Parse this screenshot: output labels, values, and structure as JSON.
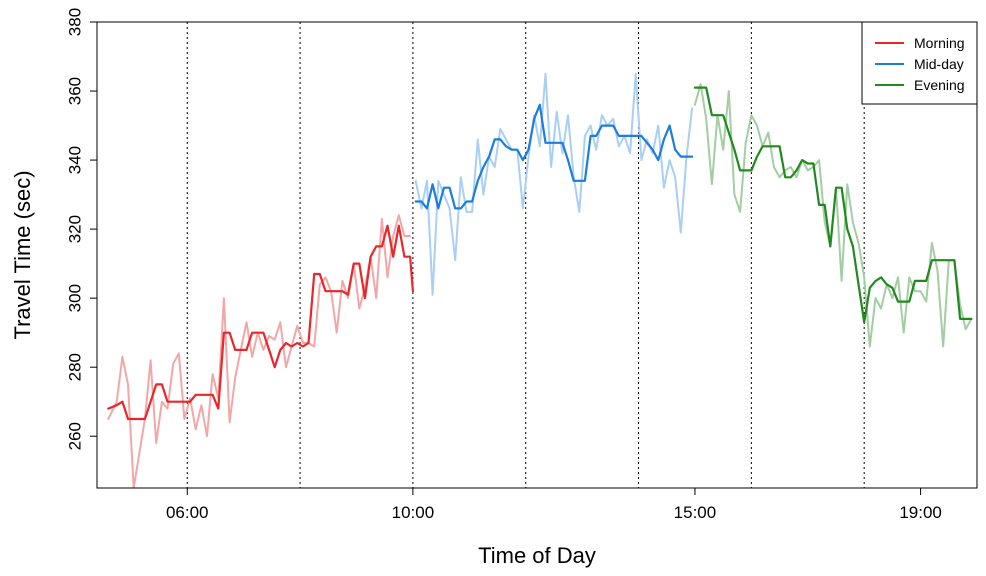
{
  "chart_data": {
    "type": "line",
    "title": "",
    "xlabel": "Time of Day",
    "ylabel": "Travel Time (sec)",
    "x_range": [
      4.4,
      20.0
    ],
    "ylim": [
      245,
      380
    ],
    "x_ticks": [
      {
        "value": 6.0,
        "label": "06:00"
      },
      {
        "value": 10.0,
        "label": "10:00"
      },
      {
        "value": 15.0,
        "label": "15:00"
      },
      {
        "value": 19.0,
        "label": "19:00"
      }
    ],
    "y_ticks": [
      260,
      280,
      300,
      320,
      340,
      360,
      380
    ],
    "vertical_dotted_lines": [
      6.0,
      8.0,
      10.0,
      12.0,
      14.0,
      16.0,
      18.0,
      20.0
    ],
    "grid": false,
    "legend": {
      "position": "top-right",
      "entries": [
        {
          "label": "Morning",
          "color": "#e8272b"
        },
        {
          "label": "Mid-day",
          "color": "#1e7ddb"
        },
        {
          "label": "Evening",
          "color": "#21891f"
        }
      ]
    },
    "series": [
      {
        "name": "Morning",
        "kind": "observed",
        "color": "#f4a6a6",
        "x": [
          4.6,
          4.75,
          4.85,
          4.95,
          5.05,
          5.15,
          5.25,
          5.35,
          5.45,
          5.55,
          5.65,
          5.75,
          5.85,
          5.95,
          6.05,
          6.15,
          6.25,
          6.35,
          6.45,
          6.55,
          6.65,
          6.75,
          6.85,
          6.95,
          7.05,
          7.15,
          7.25,
          7.35,
          7.45,
          7.55,
          7.65,
          7.75,
          7.85,
          7.95,
          8.05,
          8.15,
          8.25,
          8.35,
          8.45,
          8.55,
          8.65,
          8.75,
          8.85,
          8.95,
          9.05,
          9.15,
          9.25,
          9.35,
          9.45,
          9.55,
          9.65,
          9.75,
          9.85,
          9.95
        ],
        "y": [
          265,
          270,
          283,
          275,
          245,
          255,
          265,
          282,
          258,
          270,
          268,
          281,
          284,
          265,
          271,
          262,
          269,
          260,
          278,
          271,
          300,
          264,
          277,
          285,
          293,
          283,
          290,
          285,
          289,
          288,
          293,
          280,
          286,
          292,
          287,
          287,
          286,
          304,
          306,
          302,
          290,
          305,
          300,
          310,
          297,
          303,
          312,
          300,
          323,
          306,
          318,
          324,
          318,
          318
        ]
      },
      {
        "name": "Morning",
        "kind": "fitted",
        "color": "#e8272b",
        "x": [
          4.6,
          4.75,
          4.85,
          4.95,
          5.05,
          5.15,
          5.25,
          5.35,
          5.45,
          5.55,
          5.65,
          5.75,
          5.85,
          5.95,
          6.05,
          6.15,
          6.25,
          6.35,
          6.45,
          6.55,
          6.65,
          6.75,
          6.85,
          6.95,
          7.05,
          7.15,
          7.25,
          7.35,
          7.45,
          7.55,
          7.65,
          7.75,
          7.85,
          7.95,
          8.05,
          8.15,
          8.25,
          8.35,
          8.45,
          8.55,
          8.65,
          8.75,
          8.85,
          8.95,
          9.05,
          9.15,
          9.25,
          9.35,
          9.45,
          9.55,
          9.65,
          9.75,
          9.85,
          9.95,
          10.0
        ],
        "y": [
          268,
          269,
          270,
          265,
          265,
          265,
          265,
          270,
          275,
          275,
          270,
          270,
          270,
          270,
          270,
          272,
          272,
          272,
          272,
          268,
          290,
          290,
          285,
          285,
          285,
          290,
          290,
          290,
          285,
          280,
          285,
          287,
          286,
          287,
          286,
          287,
          307,
          307,
          302,
          302,
          302,
          302,
          301,
          310,
          310,
          300,
          312,
          315,
          315,
          321,
          312,
          321,
          312,
          312,
          302
        ]
      },
      {
        "name": "Mid-day",
        "kind": "observed",
        "color": "#a9cff2",
        "x": [
          10.05,
          10.15,
          10.25,
          10.35,
          10.45,
          10.55,
          10.65,
          10.75,
          10.85,
          10.95,
          11.05,
          11.15,
          11.25,
          11.35,
          11.45,
          11.55,
          11.65,
          11.75,
          11.85,
          11.95,
          12.05,
          12.15,
          12.25,
          12.35,
          12.45,
          12.55,
          12.65,
          12.75,
          12.85,
          12.95,
          13.05,
          13.15,
          13.25,
          13.35,
          13.45,
          13.55,
          13.65,
          13.75,
          13.85,
          13.95,
          14.05,
          14.15,
          14.25,
          14.35,
          14.45,
          14.55,
          14.65,
          14.75,
          14.85,
          14.95
        ],
        "y": [
          334,
          326,
          334,
          301,
          334,
          330,
          326,
          311,
          335,
          325,
          325,
          346,
          330,
          341,
          338,
          349,
          346,
          343,
          343,
          326,
          341,
          353,
          344,
          365,
          338,
          354,
          342,
          353,
          335,
          325,
          347,
          350,
          343,
          353,
          350,
          352,
          344,
          347,
          342,
          365,
          340,
          346,
          342,
          350,
          332,
          340,
          335,
          319,
          341,
          355
        ]
      },
      {
        "name": "Mid-day",
        "kind": "fitted",
        "color": "#1e7ddb",
        "x": [
          10.05,
          10.15,
          10.25,
          10.35,
          10.45,
          10.55,
          10.65,
          10.75,
          10.85,
          10.95,
          11.05,
          11.15,
          11.25,
          11.35,
          11.45,
          11.55,
          11.65,
          11.75,
          11.85,
          11.95,
          12.05,
          12.15,
          12.25,
          12.35,
          12.45,
          12.55,
          12.65,
          12.75,
          12.85,
          12.95,
          13.05,
          13.15,
          13.25,
          13.35,
          13.45,
          13.55,
          13.65,
          13.75,
          13.85,
          13.95,
          14.05,
          14.15,
          14.25,
          14.35,
          14.45,
          14.55,
          14.65,
          14.75,
          14.85,
          14.95
        ],
        "y": [
          328,
          328,
          326,
          333,
          326,
          332,
          332,
          326,
          326,
          328,
          328,
          334,
          338,
          341,
          346,
          346,
          344,
          343,
          343,
          340,
          343,
          352,
          356,
          345,
          345,
          345,
          345,
          340,
          334,
          334,
          334,
          347,
          347,
          350,
          350,
          350,
          347,
          347,
          347,
          347,
          347,
          345,
          343,
          340,
          346,
          350,
          343,
          341,
          341,
          341
        ]
      },
      {
        "name": "Evening",
        "kind": "observed",
        "color": "#a3cda2",
        "x": [
          15.0,
          15.1,
          15.2,
          15.3,
          15.4,
          15.5,
          15.6,
          15.7,
          15.8,
          15.9,
          16.0,
          16.1,
          16.2,
          16.3,
          16.4,
          16.5,
          16.6,
          16.7,
          16.8,
          16.9,
          17.0,
          17.1,
          17.2,
          17.3,
          17.4,
          17.5,
          17.6,
          17.7,
          17.8,
          17.9,
          18.0,
          18.1,
          18.2,
          18.3,
          18.4,
          18.5,
          18.6,
          18.7,
          18.8,
          18.9,
          19.0,
          19.1,
          19.2,
          19.3,
          19.4,
          19.5,
          19.6,
          19.7,
          19.8,
          19.9
        ],
        "y": [
          356,
          362,
          352,
          333,
          353,
          343,
          360,
          330,
          325,
          345,
          353,
          350,
          344,
          348,
          338,
          335,
          337,
          338,
          335,
          340,
          337,
          338,
          340,
          322,
          315,
          332,
          305,
          333,
          322,
          316,
          306,
          286,
          300,
          297,
          304,
          300,
          306,
          290,
          306,
          302,
          302,
          299,
          316,
          308,
          286,
          311,
          311,
          298,
          291,
          294
        ]
      },
      {
        "name": "Evening",
        "kind": "fitted",
        "color": "#21891f",
        "x": [
          15.0,
          15.1,
          15.2,
          15.3,
          15.4,
          15.5,
          15.6,
          15.7,
          15.8,
          15.9,
          16.0,
          16.1,
          16.2,
          16.3,
          16.4,
          16.5,
          16.6,
          16.7,
          16.8,
          16.9,
          17.0,
          17.1,
          17.2,
          17.3,
          17.4,
          17.5,
          17.6,
          17.7,
          17.8,
          17.9,
          18.0,
          18.1,
          18.2,
          18.3,
          18.4,
          18.5,
          18.6,
          18.7,
          18.8,
          18.9,
          19.0,
          19.1,
          19.2,
          19.3,
          19.4,
          19.5,
          19.6,
          19.7,
          19.8,
          19.9
        ],
        "y": [
          361,
          361,
          361,
          353,
          353,
          353,
          348,
          343,
          337,
          337,
          337,
          341,
          344,
          344,
          344,
          344,
          335,
          335,
          337,
          340,
          339,
          339,
          327,
          327,
          315,
          332,
          332,
          320,
          315,
          304,
          293,
          303,
          305,
          306,
          304,
          303,
          299,
          299,
          299,
          305,
          305,
          305,
          311,
          311,
          311,
          311,
          311,
          294,
          294,
          294
        ]
      }
    ]
  }
}
